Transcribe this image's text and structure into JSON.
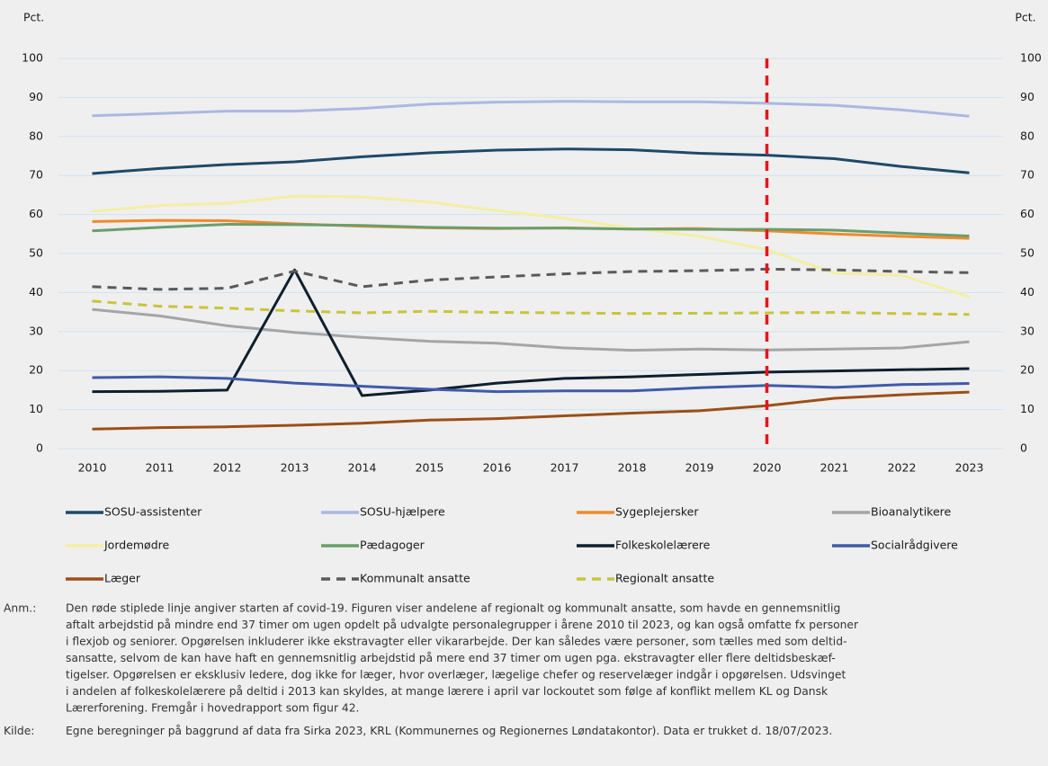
{
  "chart_data": {
    "type": "line",
    "y_label": "Pct.",
    "y2_label": "Pct.",
    "x": [
      2010,
      2011,
      2012,
      2013,
      2014,
      2015,
      2016,
      2017,
      2018,
      2019,
      2020,
      2021,
      2022,
      2023
    ],
    "xlim": [
      2009.5,
      2023.5
    ],
    "xticks": [
      2010,
      2011,
      2012,
      2013,
      2014,
      2015,
      2016,
      2017,
      2018,
      2019,
      2020,
      2021,
      2022,
      2023
    ],
    "ylim": [
      0,
      100
    ],
    "yticks": [
      0,
      10,
      20,
      30,
      40,
      50,
      60,
      70,
      80,
      90,
      100
    ],
    "y2lim": [
      0,
      100
    ],
    "y2ticks": [
      0,
      10,
      20,
      30,
      40,
      50,
      60,
      70,
      80,
      90,
      100
    ],
    "grid": true,
    "grid_color": "#cfe3f3",
    "vline": {
      "x": 2020,
      "color": "#e8141b"
    },
    "series": [
      {
        "name": "SOSU-assistenter",
        "color": "#1d4a68",
        "values": [
          70.5,
          71.8,
          72.8,
          73.5,
          74.8,
          75.8,
          76.5,
          76.8,
          76.6,
          75.7,
          75.2,
          74.3,
          72.3,
          70.7
        ]
      },
      {
        "name": "SOSU-hjælpere",
        "color": "#aab8e2",
        "values": [
          85.3,
          85.9,
          86.5,
          86.5,
          87.2,
          88.3,
          88.8,
          89.0,
          88.9,
          88.9,
          88.5,
          88.0,
          86.8,
          85.2
        ]
      },
      {
        "name": "Sygeplejersker",
        "color": "#f08a2c",
        "values": [
          58.2,
          58.5,
          58.4,
          57.6,
          57.0,
          56.6,
          56.4,
          56.6,
          56.3,
          56.4,
          55.8,
          55.0,
          54.4,
          53.9
        ]
      },
      {
        "name": "Bioanalytikere",
        "color": "#a5a5a5",
        "values": [
          35.7,
          34.0,
          31.5,
          29.8,
          28.5,
          27.5,
          27.0,
          25.8,
          25.2,
          25.5,
          25.3,
          25.5,
          25.8,
          27.4
        ]
      },
      {
        "name": "Jordemødre",
        "color": "#f3efa3",
        "values": [
          60.8,
          62.3,
          62.9,
          64.7,
          64.5,
          63.2,
          61.0,
          59.0,
          56.5,
          54.4,
          51.0,
          45.0,
          44.4,
          38.9
        ]
      },
      {
        "name": "Pædagoger",
        "color": "#6a9e6c",
        "values": [
          55.8,
          56.7,
          57.5,
          57.4,
          57.2,
          56.7,
          56.5,
          56.5,
          56.3,
          56.2,
          56.2,
          56.0,
          55.2,
          54.5
        ]
      },
      {
        "name": "Folkeskolelærere",
        "color": "#0e1f2e",
        "values": [
          14.6,
          14.7,
          15.0,
          45.8,
          13.6,
          15.0,
          16.8,
          18.0,
          18.4,
          19.0,
          19.6,
          19.9,
          20.2,
          20.5
        ]
      },
      {
        "name": "Socialrådgivere",
        "color": "#3f5ba9",
        "values": [
          18.2,
          18.4,
          18.0,
          16.8,
          16.0,
          15.2,
          14.6,
          14.8,
          14.8,
          15.6,
          16.2,
          15.7,
          16.4,
          16.7
        ]
      },
      {
        "name": "Læger",
        "color": "#9c4f17",
        "values": [
          5.0,
          5.4,
          5.6,
          6.0,
          6.5,
          7.3,
          7.7,
          8.4,
          9.1,
          9.7,
          11.0,
          12.9,
          13.8,
          14.5
        ]
      },
      {
        "name": "Kommunalt ansatte",
        "color": "#5a5a5a",
        "dash": true,
        "values": [
          41.5,
          40.8,
          41.1,
          45.5,
          41.5,
          43.2,
          44.0,
          44.8,
          45.4,
          45.6,
          46.0,
          45.8,
          45.4,
          45.1
        ]
      },
      {
        "name": "Regionalt ansatte",
        "color": "#c9c43b",
        "dash": true,
        "values": [
          37.8,
          36.5,
          36.0,
          35.3,
          34.8,
          35.2,
          34.9,
          34.8,
          34.6,
          34.7,
          34.8,
          34.9,
          34.6,
          34.4
        ]
      }
    ]
  },
  "notes": [
    {
      "label": "Anm.:",
      "lines": [
        "Den røde stiplede linje angiver starten af covid-19. Figuren viser andelene af regionalt og kommunalt ansatte, som havde en gennemsnitlig",
        "aftalt arbejdstid på mindre end 37 timer om ugen opdelt på udvalgte personalegrupper i årene 2010 til 2023, og kan også omfatte fx personer",
        "i flexjob og seniorer. Opgørelsen inkluderer ikke ekstravagter eller vikararbejde. Der kan således være personer, som tælles med som deltid-",
        "sansatte, selvom de kan have haft en gennemsnitlig arbejdstid på mere end 37 timer om ugen pga. ekstravagter eller flere deltidsbeskæf-",
        "tigelser. Opgørelsen er eksklusiv ledere, dog ikke for læger, hvor overlæger, lægelige chefer og reservelæger indgår i opgørelsen. Udsvinget",
        "i andelen af folkeskolelærere på deltid i 2013 kan skyldes, at mange lærere i april var lockoutet som følge af konflikt mellem KL og Dansk",
        "Lærerforening. Fremgår i hovedrapport som figur 42."
      ]
    },
    {
      "label": "Kilde:",
      "lines": [
        "Egne beregninger på baggrund af data fra Sirka 2023, KRL (Kommunernes og Regionernes Løndatakontor). Data er trukket d. 18/07/2023."
      ]
    }
  ]
}
